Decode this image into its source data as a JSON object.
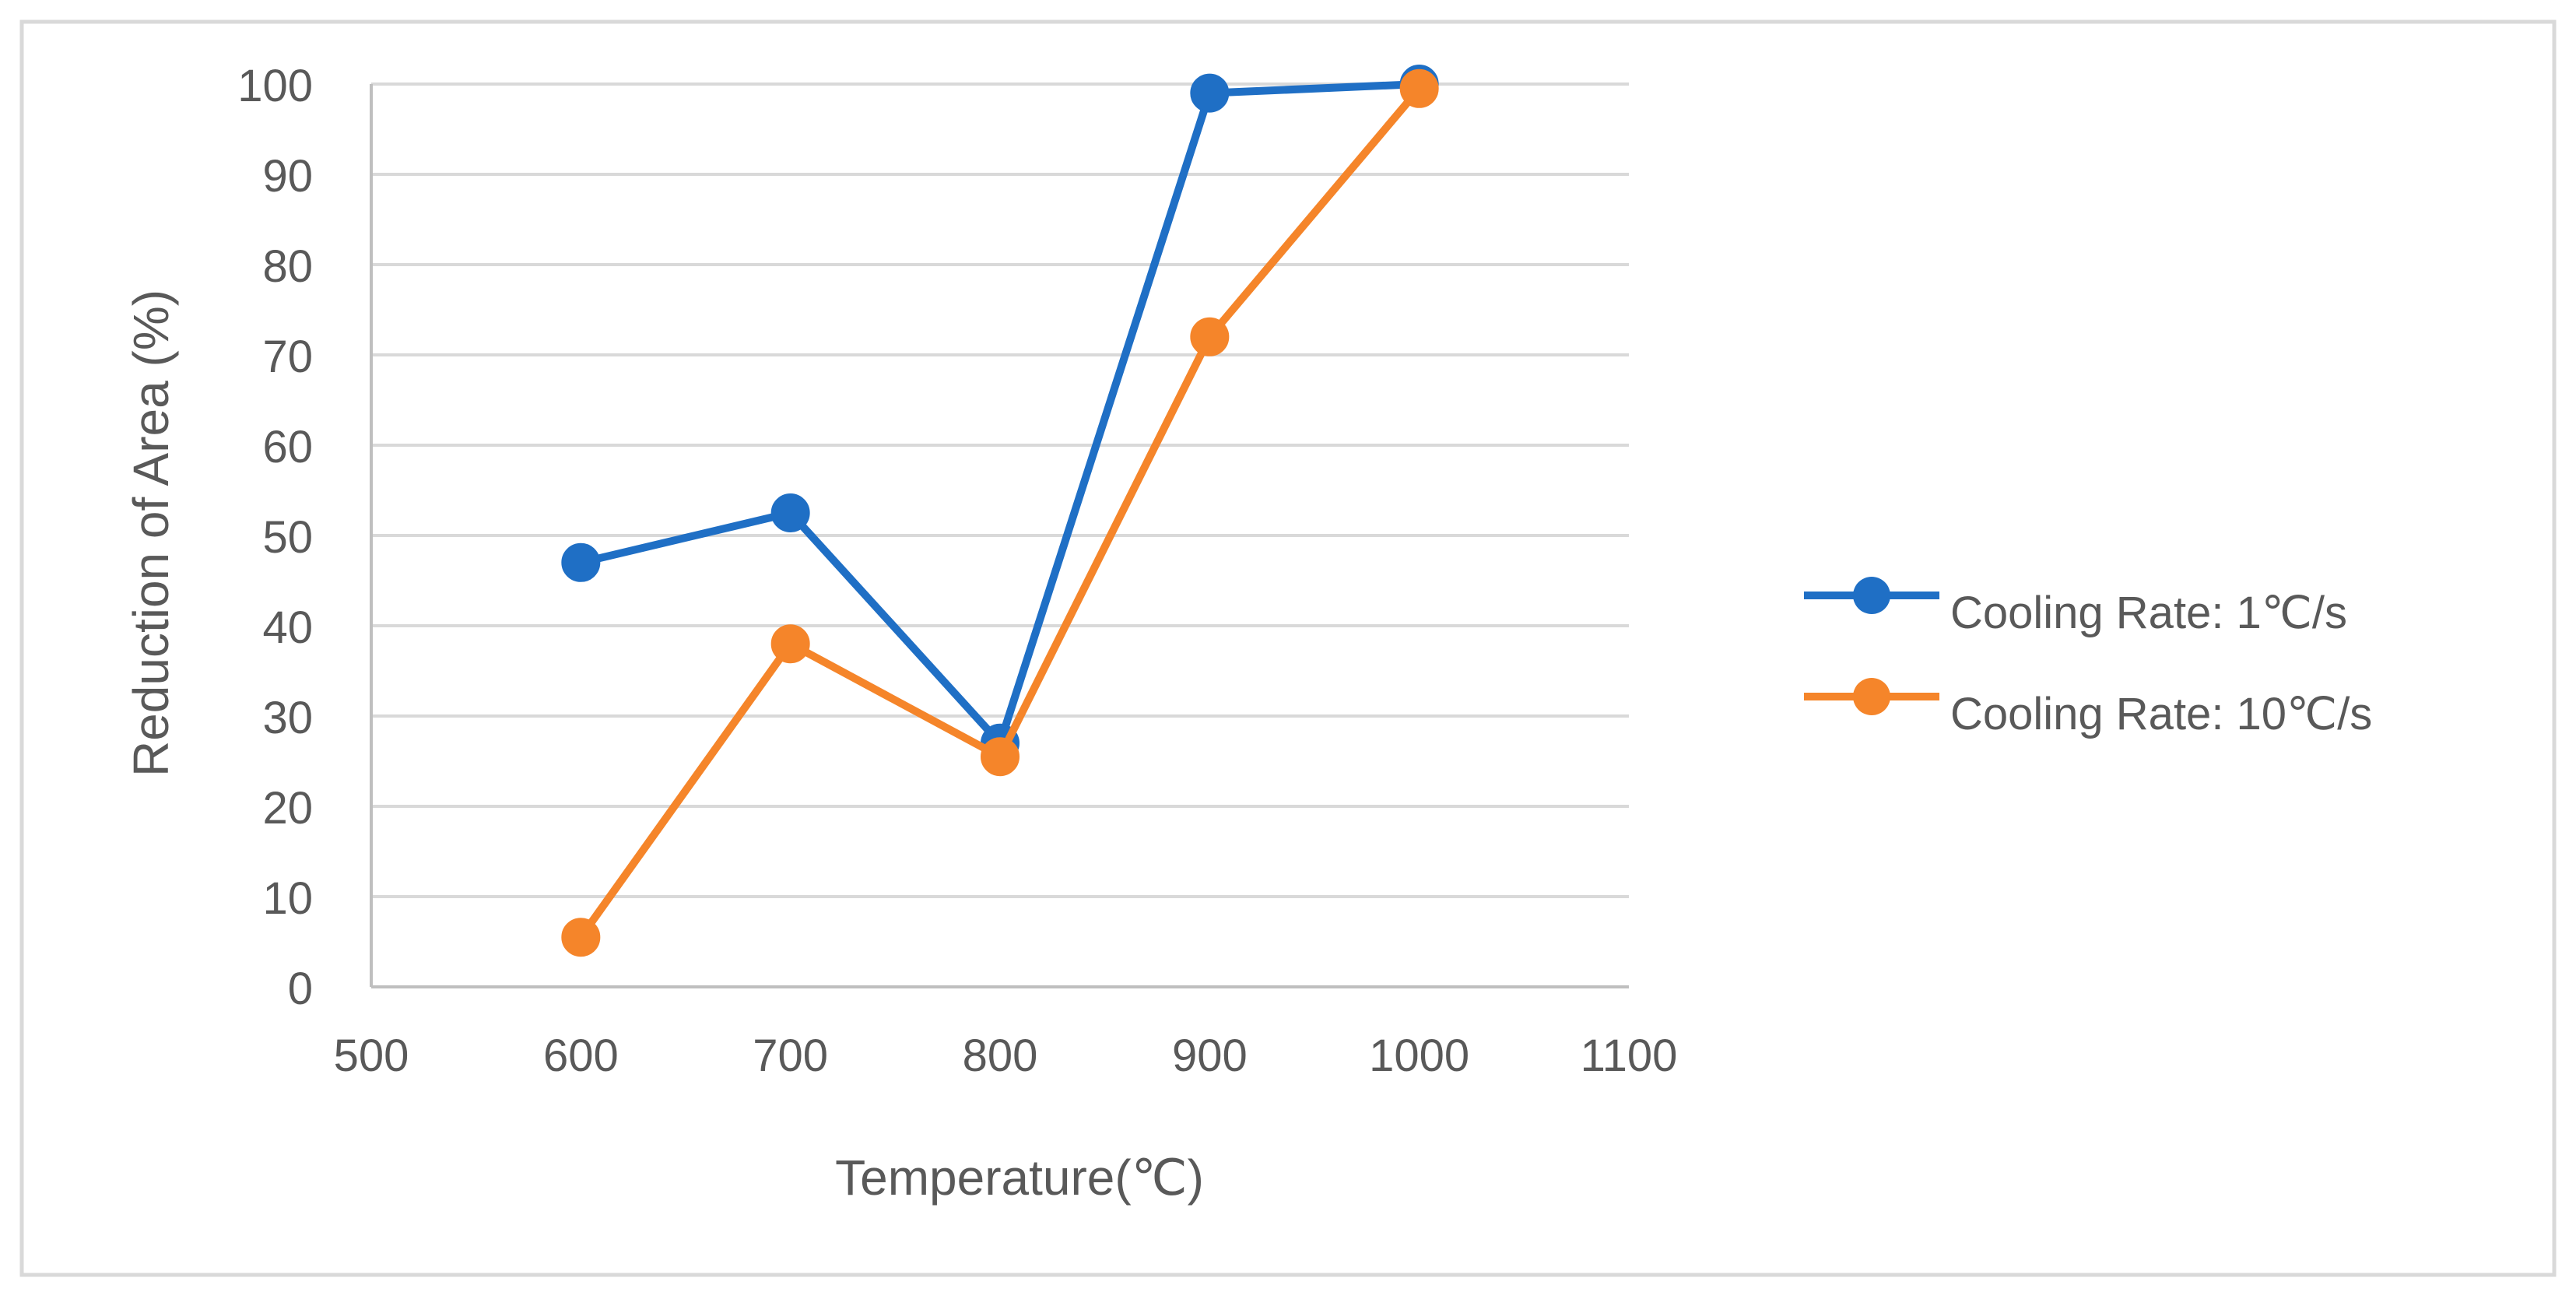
{
  "chart_data": {
    "type": "line",
    "title": "",
    "xlabel": "Temperature(℃)",
    "ylabel": "Reduction of Area (%)",
    "xlim": [
      500,
      1100
    ],
    "ylim": [
      0,
      100
    ],
    "xticks": [
      500,
      600,
      700,
      800,
      900,
      1000,
      1100
    ],
    "yticks": [
      0,
      10,
      20,
      30,
      40,
      50,
      60,
      70,
      80,
      90,
      100
    ],
    "grid": "horizontal",
    "legend_position": "right",
    "series": [
      {
        "name": "Cooling Rate: 1℃/s",
        "color": "#1F6FC5",
        "x": [
          600,
          700,
          800,
          900,
          1000
        ],
        "y": [
          47,
          52.5,
          27,
          99,
          100
        ]
      },
      {
        "name": "Cooling Rate: 10℃/s",
        "color": "#F5852A",
        "x": [
          600,
          700,
          800,
          900,
          1000
        ],
        "y": [
          5.5,
          38,
          25.5,
          72,
          99.5
        ]
      }
    ]
  },
  "colors": {
    "grid": "#D9D9D9",
    "axis": "#BFBFBF",
    "frame": "#D9D9D9",
    "text": "#595959"
  }
}
